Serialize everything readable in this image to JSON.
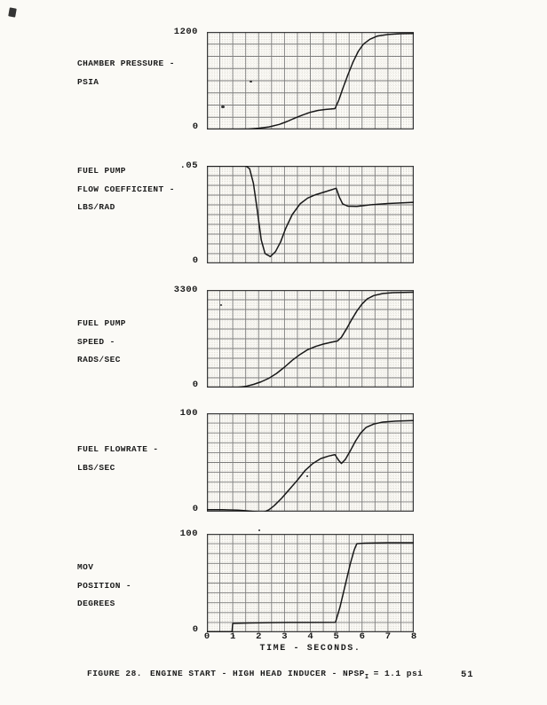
{
  "figure": {
    "caption_prefix": "FIGURE 28.",
    "caption_main": "ENGINE START - HIGH HEAD INDUCER - NPSP",
    "caption_subscript": "I",
    "caption_suffix": "= 1.1 psi",
    "page_number": "51"
  },
  "x_axis": {
    "title": "TIME - SECONDS.",
    "tick_labels": [
      "0",
      "1",
      "2",
      "3",
      "4",
      "5",
      "6",
      "7",
      "8"
    ],
    "min": 0,
    "max": 8
  },
  "chart_data": [
    {
      "type": "line",
      "ylabel": "CHAMBER PRESSURE - PSIA",
      "label_lines": [
        "CHAMBER PRESSURE -",
        "PSIA"
      ],
      "y_top_label": "1200",
      "y_bottom_label": "0",
      "ylim": [
        0,
        1200
      ],
      "xlim": [
        0,
        8
      ],
      "grid": {
        "cols": 16,
        "rows": 8
      },
      "points": [
        [
          0,
          0
        ],
        [
          0.6,
          0
        ],
        [
          1.2,
          2
        ],
        [
          1.6,
          6
        ],
        [
          2.0,
          15
        ],
        [
          2.4,
          32
        ],
        [
          2.8,
          62
        ],
        [
          3.1,
          98
        ],
        [
          3.4,
          140
        ],
        [
          3.7,
          178
        ],
        [
          4.0,
          212
        ],
        [
          4.3,
          234
        ],
        [
          4.6,
          247
        ],
        [
          4.95,
          256
        ],
        [
          5.1,
          360
        ],
        [
          5.25,
          500
        ],
        [
          5.45,
          670
        ],
        [
          5.65,
          830
        ],
        [
          5.85,
          960
        ],
        [
          6.05,
          1050
        ],
        [
          6.3,
          1110
        ],
        [
          6.6,
          1150
        ],
        [
          7.0,
          1168
        ],
        [
          7.5,
          1178
        ],
        [
          8.0,
          1182
        ]
      ]
    },
    {
      "type": "line",
      "ylabel": "FUEL PUMP FLOW COEFFICIENT - LBS/RAD",
      "label_lines": [
        "FUEL PUMP",
        "FLOW COEFFICIENT -",
        "LBS/RAD"
      ],
      "y_top_label": ".05",
      "y_bottom_label": "0",
      "ylim": [
        0,
        0.05
      ],
      "xlim": [
        0,
        8
      ],
      "grid": {
        "cols": 16,
        "rows": 10
      },
      "points": [
        [
          0,
          0.05
        ],
        [
          0.9,
          0.05
        ],
        [
          1.5,
          0.05
        ],
        [
          1.65,
          0.0485
        ],
        [
          1.8,
          0.041
        ],
        [
          1.95,
          0.027
        ],
        [
          2.1,
          0.012
        ],
        [
          2.25,
          0.005
        ],
        [
          2.45,
          0.0035
        ],
        [
          2.65,
          0.006
        ],
        [
          2.85,
          0.011
        ],
        [
          3.05,
          0.018
        ],
        [
          3.3,
          0.025
        ],
        [
          3.6,
          0.0305
        ],
        [
          3.9,
          0.0335
        ],
        [
          4.2,
          0.0352
        ],
        [
          4.6,
          0.0368
        ],
        [
          5.0,
          0.0385
        ],
        [
          5.12,
          0.034
        ],
        [
          5.25,
          0.0305
        ],
        [
          5.45,
          0.0293
        ],
        [
          5.8,
          0.0292
        ],
        [
          6.3,
          0.03
        ],
        [
          7.0,
          0.0307
        ],
        [
          8.0,
          0.0313
        ]
      ]
    },
    {
      "type": "line",
      "ylabel": "FUEL PUMP SPEED - RADS/SEC",
      "label_lines": [
        "FUEL PUMP",
        "SPEED -",
        "RADS/SEC"
      ],
      "y_top_label": "3300",
      "y_bottom_label": "0",
      "ylim": [
        0,
        3300
      ],
      "xlim": [
        0,
        8
      ],
      "grid": {
        "cols": 16,
        "rows": 10
      },
      "points": [
        [
          0,
          0
        ],
        [
          0.7,
          0
        ],
        [
          1.2,
          5
        ],
        [
          1.5,
          40
        ],
        [
          1.8,
          105
        ],
        [
          2.1,
          195
        ],
        [
          2.4,
          315
        ],
        [
          2.7,
          480
        ],
        [
          3.0,
          690
        ],
        [
          3.3,
          920
        ],
        [
          3.6,
          1120
        ],
        [
          3.9,
          1280
        ],
        [
          4.2,
          1390
        ],
        [
          4.5,
          1470
        ],
        [
          4.8,
          1530
        ],
        [
          5.05,
          1575
        ],
        [
          5.2,
          1700
        ],
        [
          5.4,
          1990
        ],
        [
          5.6,
          2300
        ],
        [
          5.8,
          2590
        ],
        [
          6.0,
          2830
        ],
        [
          6.2,
          3000
        ],
        [
          6.45,
          3110
        ],
        [
          6.8,
          3180
        ],
        [
          7.2,
          3210
        ],
        [
          8.0,
          3225
        ]
      ]
    },
    {
      "type": "line",
      "ylabel": "FUEL FLOWRATE - LBS/SEC",
      "label_lines": [
        "FUEL FLOWRATE -",
        "LBS/SEC"
      ],
      "y_top_label": "100",
      "y_bottom_label": "0",
      "ylim": [
        0,
        100
      ],
      "xlim": [
        0,
        8
      ],
      "grid": {
        "cols": 16,
        "rows": 10
      },
      "points": [
        [
          0,
          2
        ],
        [
          0.6,
          2
        ],
        [
          1.2,
          1.5
        ],
        [
          1.7,
          0.5
        ],
        [
          2.0,
          -0.5
        ],
        [
          2.2,
          -0.5
        ],
        [
          2.4,
          2
        ],
        [
          2.6,
          6
        ],
        [
          2.9,
          14
        ],
        [
          3.2,
          23
        ],
        [
          3.5,
          32
        ],
        [
          3.8,
          42
        ],
        [
          4.1,
          49
        ],
        [
          4.4,
          54
        ],
        [
          4.7,
          56.5
        ],
        [
          4.95,
          58
        ],
        [
          5.1,
          52
        ],
        [
          5.2,
          49
        ],
        [
          5.35,
          53
        ],
        [
          5.55,
          62
        ],
        [
          5.75,
          72
        ],
        [
          5.95,
          80
        ],
        [
          6.15,
          85.5
        ],
        [
          6.45,
          89
        ],
        [
          6.8,
          91
        ],
        [
          7.3,
          92
        ],
        [
          8.0,
          92.5
        ]
      ]
    },
    {
      "type": "line",
      "ylabel": "MOV POSITION - DEGREES",
      "label_lines": [
        "MOV",
        "POSITION -",
        "DEGREES"
      ],
      "y_top_label": "100",
      "y_bottom_label": "0",
      "ylim": [
        0,
        100
      ],
      "xlim": [
        0,
        8
      ],
      "grid": {
        "cols": 16,
        "rows": 10
      },
      "points": [
        [
          0,
          0.5
        ],
        [
          0.97,
          0.5
        ],
        [
          1.0,
          9
        ],
        [
          1.6,
          9.5
        ],
        [
          2.4,
          9.8
        ],
        [
          3.2,
          10
        ],
        [
          4.0,
          10
        ],
        [
          4.97,
          10.2
        ],
        [
          5.15,
          26
        ],
        [
          5.35,
          48
        ],
        [
          5.55,
          70
        ],
        [
          5.7,
          84
        ],
        [
          5.8,
          90
        ],
        [
          6.1,
          90.5
        ],
        [
          7.0,
          91
        ],
        [
          8.0,
          91
        ]
      ]
    }
  ],
  "style": {
    "curve_color": "#181818",
    "major_grid_color": "#646464",
    "fine_grid_color": "#cdcabf",
    "border_color": "#3a3a3a",
    "paper_color": "#fbfaf6"
  }
}
